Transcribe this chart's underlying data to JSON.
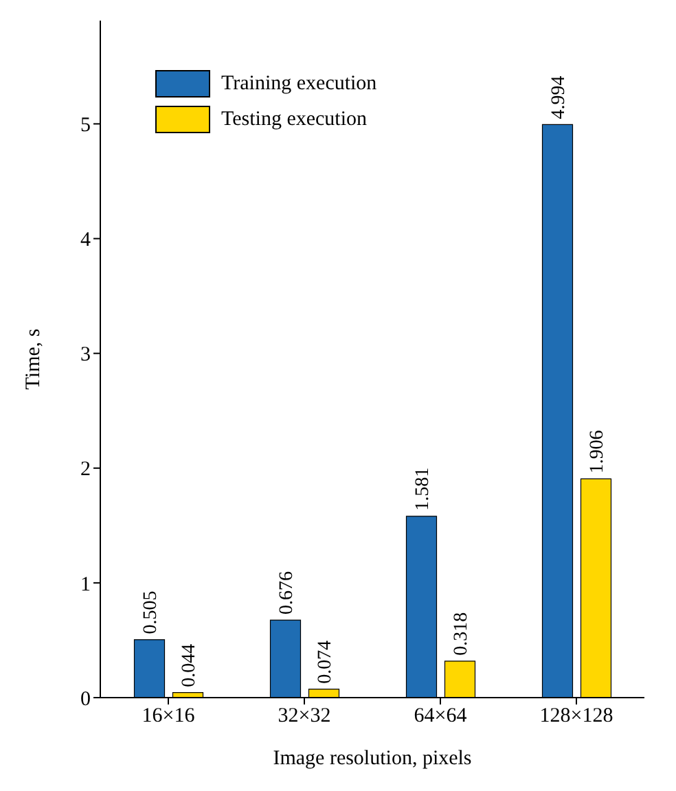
{
  "chart_data": {
    "type": "bar",
    "xlabel": "Image resolution, pixels",
    "ylabel": "Time, s",
    "categories": [
      "16×16",
      "32×32",
      "64×64",
      "128×128"
    ],
    "series": [
      {
        "name": "Training execution",
        "color": "#1f6db3",
        "values": [
          0.505,
          0.676,
          1.581,
          4.994
        ]
      },
      {
        "name": "Testing execution",
        "color": "#ffd700",
        "values": [
          0.044,
          0.074,
          0.318,
          1.906
        ]
      }
    ],
    "ylim": [
      0,
      5.9
    ],
    "yticks": [
      0,
      1,
      2,
      3,
      4,
      5
    ],
    "grid": false,
    "legend": "top left",
    "data_labels": true
  }
}
